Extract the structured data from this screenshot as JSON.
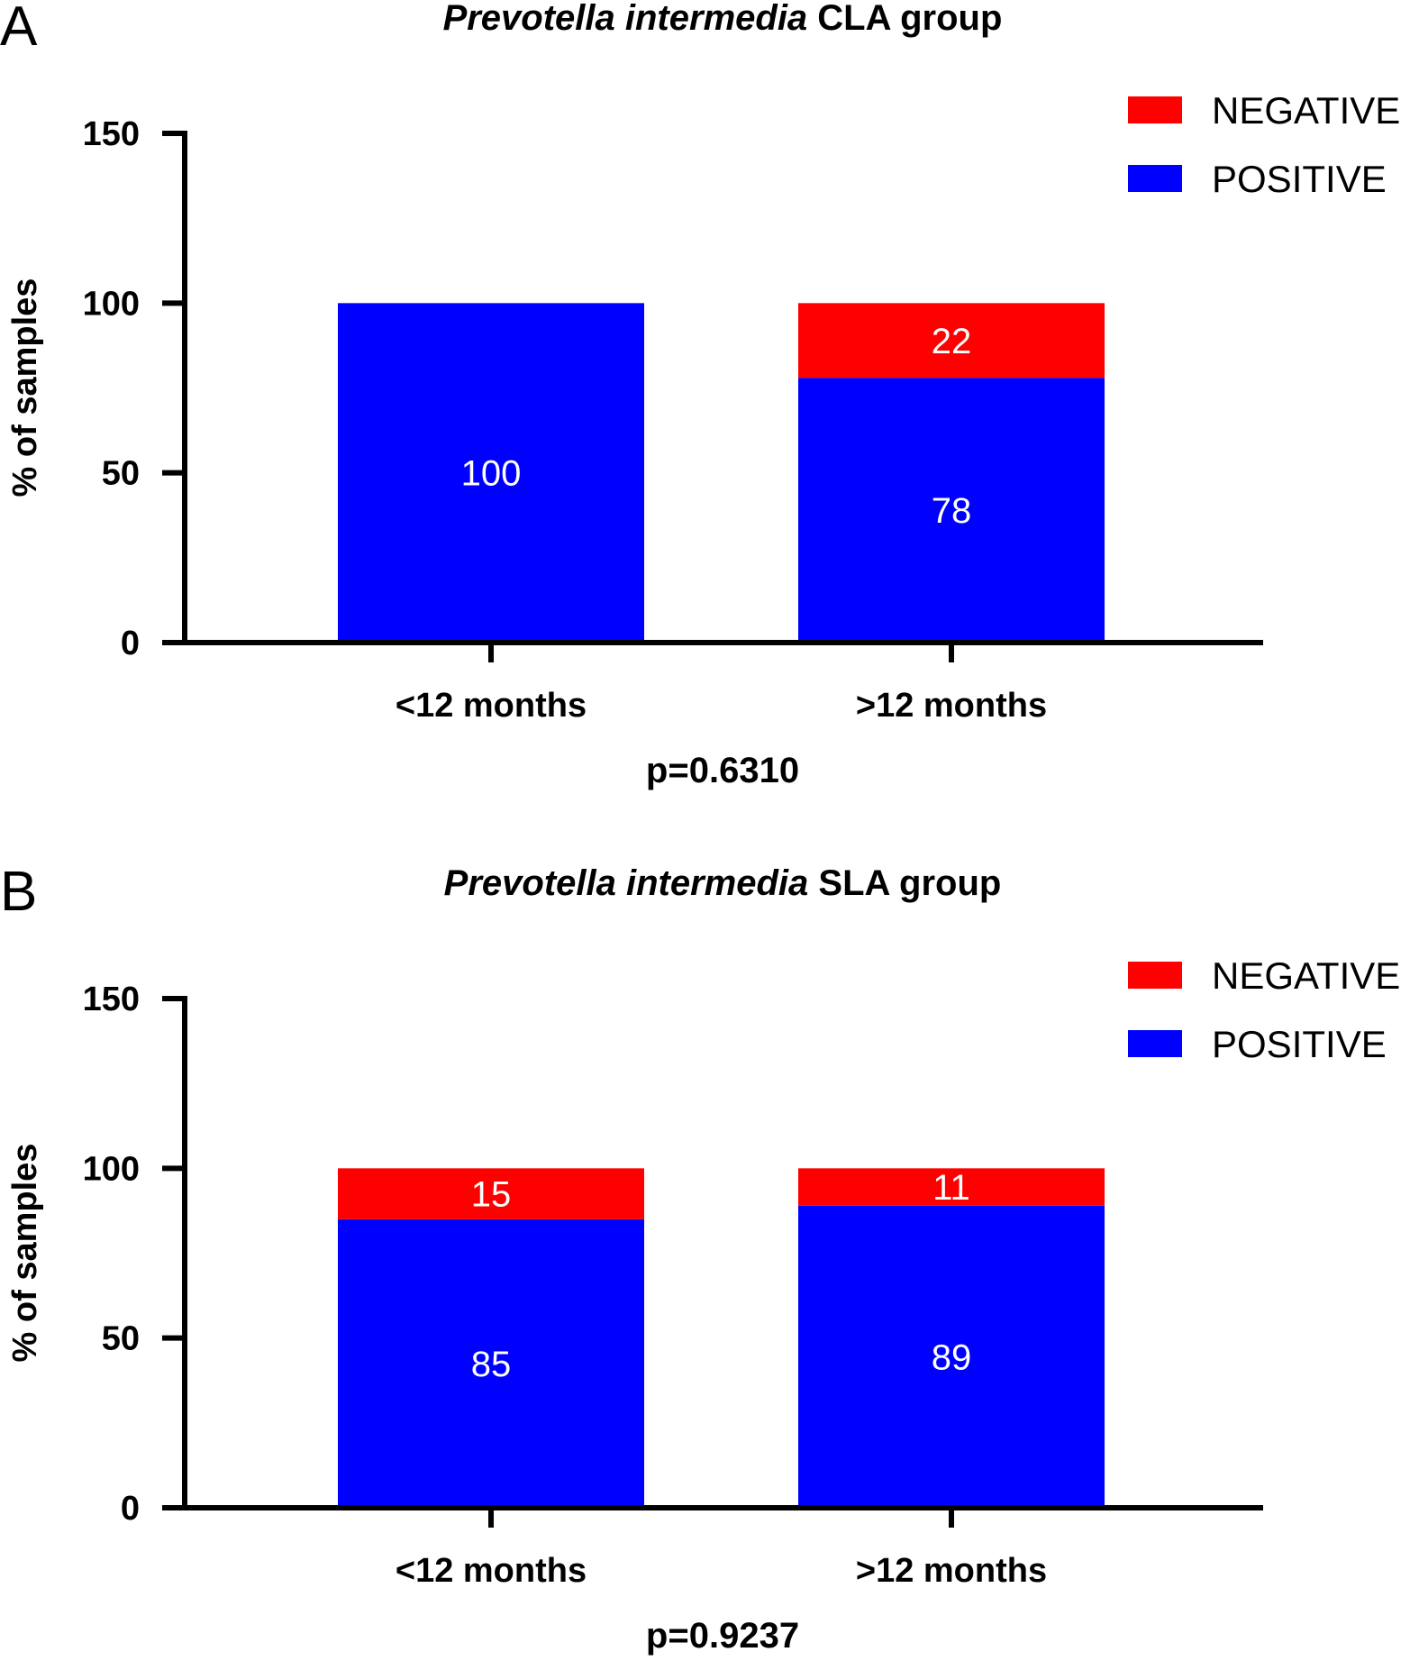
{
  "chart_data": [
    {
      "panel": "A",
      "type": "bar",
      "stacked": true,
      "title": "CLA group",
      "title_italic": "Prevotella intermedia",
      "ylabel": "% of samples",
      "xlabel": "",
      "ylim": [
        0,
        150
      ],
      "yticks": [
        0,
        50,
        100,
        150
      ],
      "categories": [
        "<12 months",
        ">12 months"
      ],
      "series": [
        {
          "name": "POSITIVE",
          "color": "#0000ff",
          "values": [
            100,
            78
          ],
          "labels": [
            "100",
            "78"
          ]
        },
        {
          "name": "NEGATIVE",
          "color": "#ff0000",
          "values": [
            0,
            22
          ],
          "labels": [
            "",
            "22"
          ]
        }
      ],
      "legend_order": [
        "NEGATIVE",
        "POSITIVE"
      ],
      "legend_position": "top-right",
      "p_value": "p=0.6310"
    },
    {
      "panel": "B",
      "type": "bar",
      "stacked": true,
      "title": "SLA group",
      "title_italic": "Prevotella intermedia",
      "ylabel": "% of samples",
      "xlabel": "",
      "ylim": [
        0,
        150
      ],
      "yticks": [
        0,
        50,
        100,
        150
      ],
      "categories": [
        "<12 months",
        ">12 months"
      ],
      "series": [
        {
          "name": "POSITIVE",
          "color": "#0000ff",
          "values": [
            85,
            89
          ],
          "labels": [
            "85",
            "89"
          ]
        },
        {
          "name": "NEGATIVE",
          "color": "#ff0000",
          "values": [
            15,
            11
          ],
          "labels": [
            "15",
            "11"
          ]
        }
      ],
      "legend_order": [
        "NEGATIVE",
        "POSITIVE"
      ],
      "legend_position": "top-right",
      "p_value": "p=0.9237"
    }
  ]
}
